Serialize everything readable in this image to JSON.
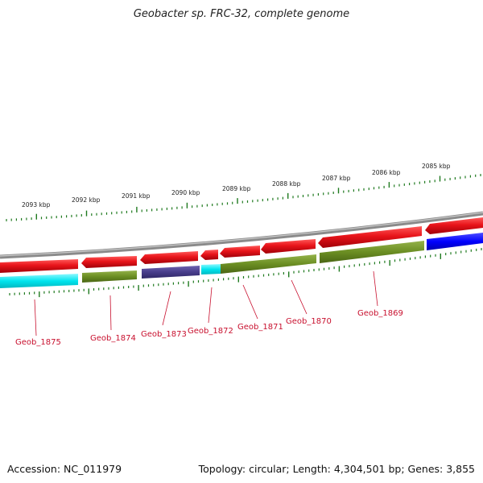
{
  "title": "Geobacter sp. FRC-32, complete genome",
  "footer": {
    "accession": "Accession: NC_011979",
    "stats": "Topology: circular; Length: 4,304,501 bp; Genes: 3,855"
  },
  "scale_labels": [
    "2093 kbp",
    "2092 kbp",
    "2091 kbp",
    "2090 kbp",
    "2089 kbp",
    "2088 kbp",
    "2087 kbp",
    "2086 kbp",
    "2085 kbp"
  ],
  "gene_labels": [
    "Geob_1875",
    "Geob_1874",
    "Geob_1873",
    "Geob_1872",
    "Geob_1871",
    "Geob_1870",
    "Geob_1869"
  ],
  "colors": {
    "forward_gene": "#e8141a",
    "olive_gene": "#6b8e23",
    "cyan_gene": "#00e5ee",
    "purple_gene": "#483d8b",
    "blue_gene": "#0000ff",
    "backbone": "#8a8a8a",
    "ticks": "#1f7a1f",
    "label_line": "#c8102e"
  }
}
